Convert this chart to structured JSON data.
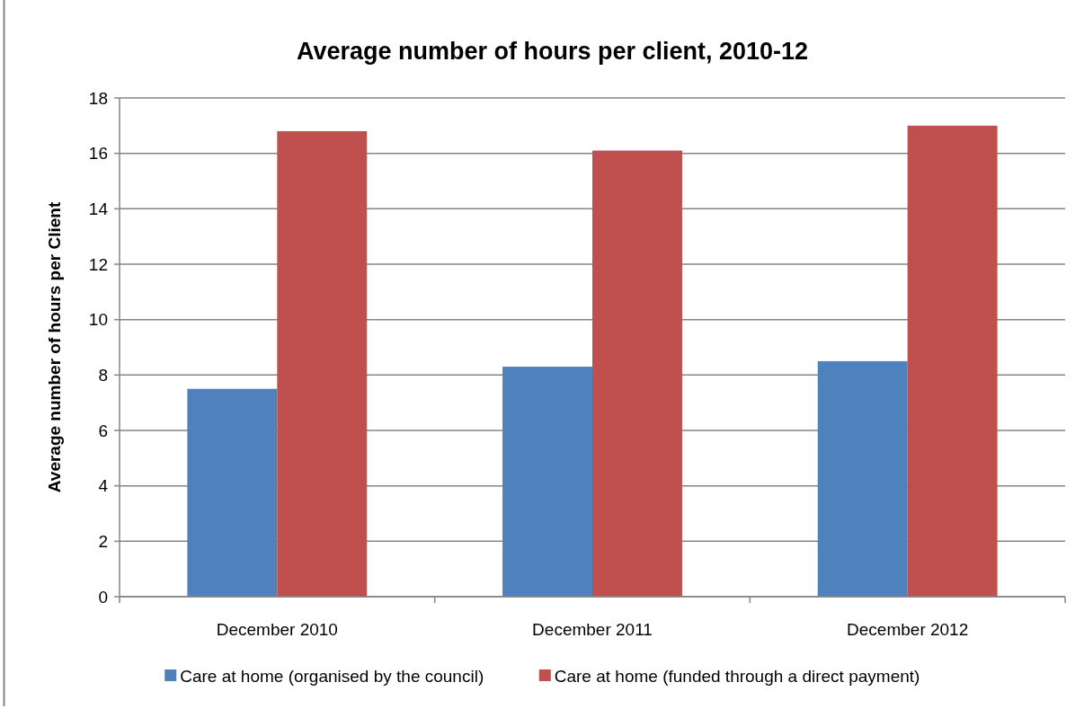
{
  "chart_data": {
    "type": "bar",
    "title": "Average number of hours per client, 2010-12",
    "ylabel": "Average number of hours per Client",
    "categories": [
      "December 2010",
      "December 2011",
      "December 2012"
    ],
    "series": [
      {
        "name": "Care at home (organised by the council)",
        "color": "#4f81bd",
        "values": [
          7.5,
          8.3,
          8.5
        ]
      },
      {
        "name": "Care at home (funded through a direct payment)",
        "color": "#c0504d",
        "values": [
          16.8,
          16.1,
          17.0
        ]
      }
    ],
    "ylim": [
      0,
      18
    ],
    "yticks": [
      0,
      2,
      4,
      6,
      8,
      10,
      12,
      14,
      16,
      18
    ],
    "grid": "y",
    "legend": "bottom"
  }
}
